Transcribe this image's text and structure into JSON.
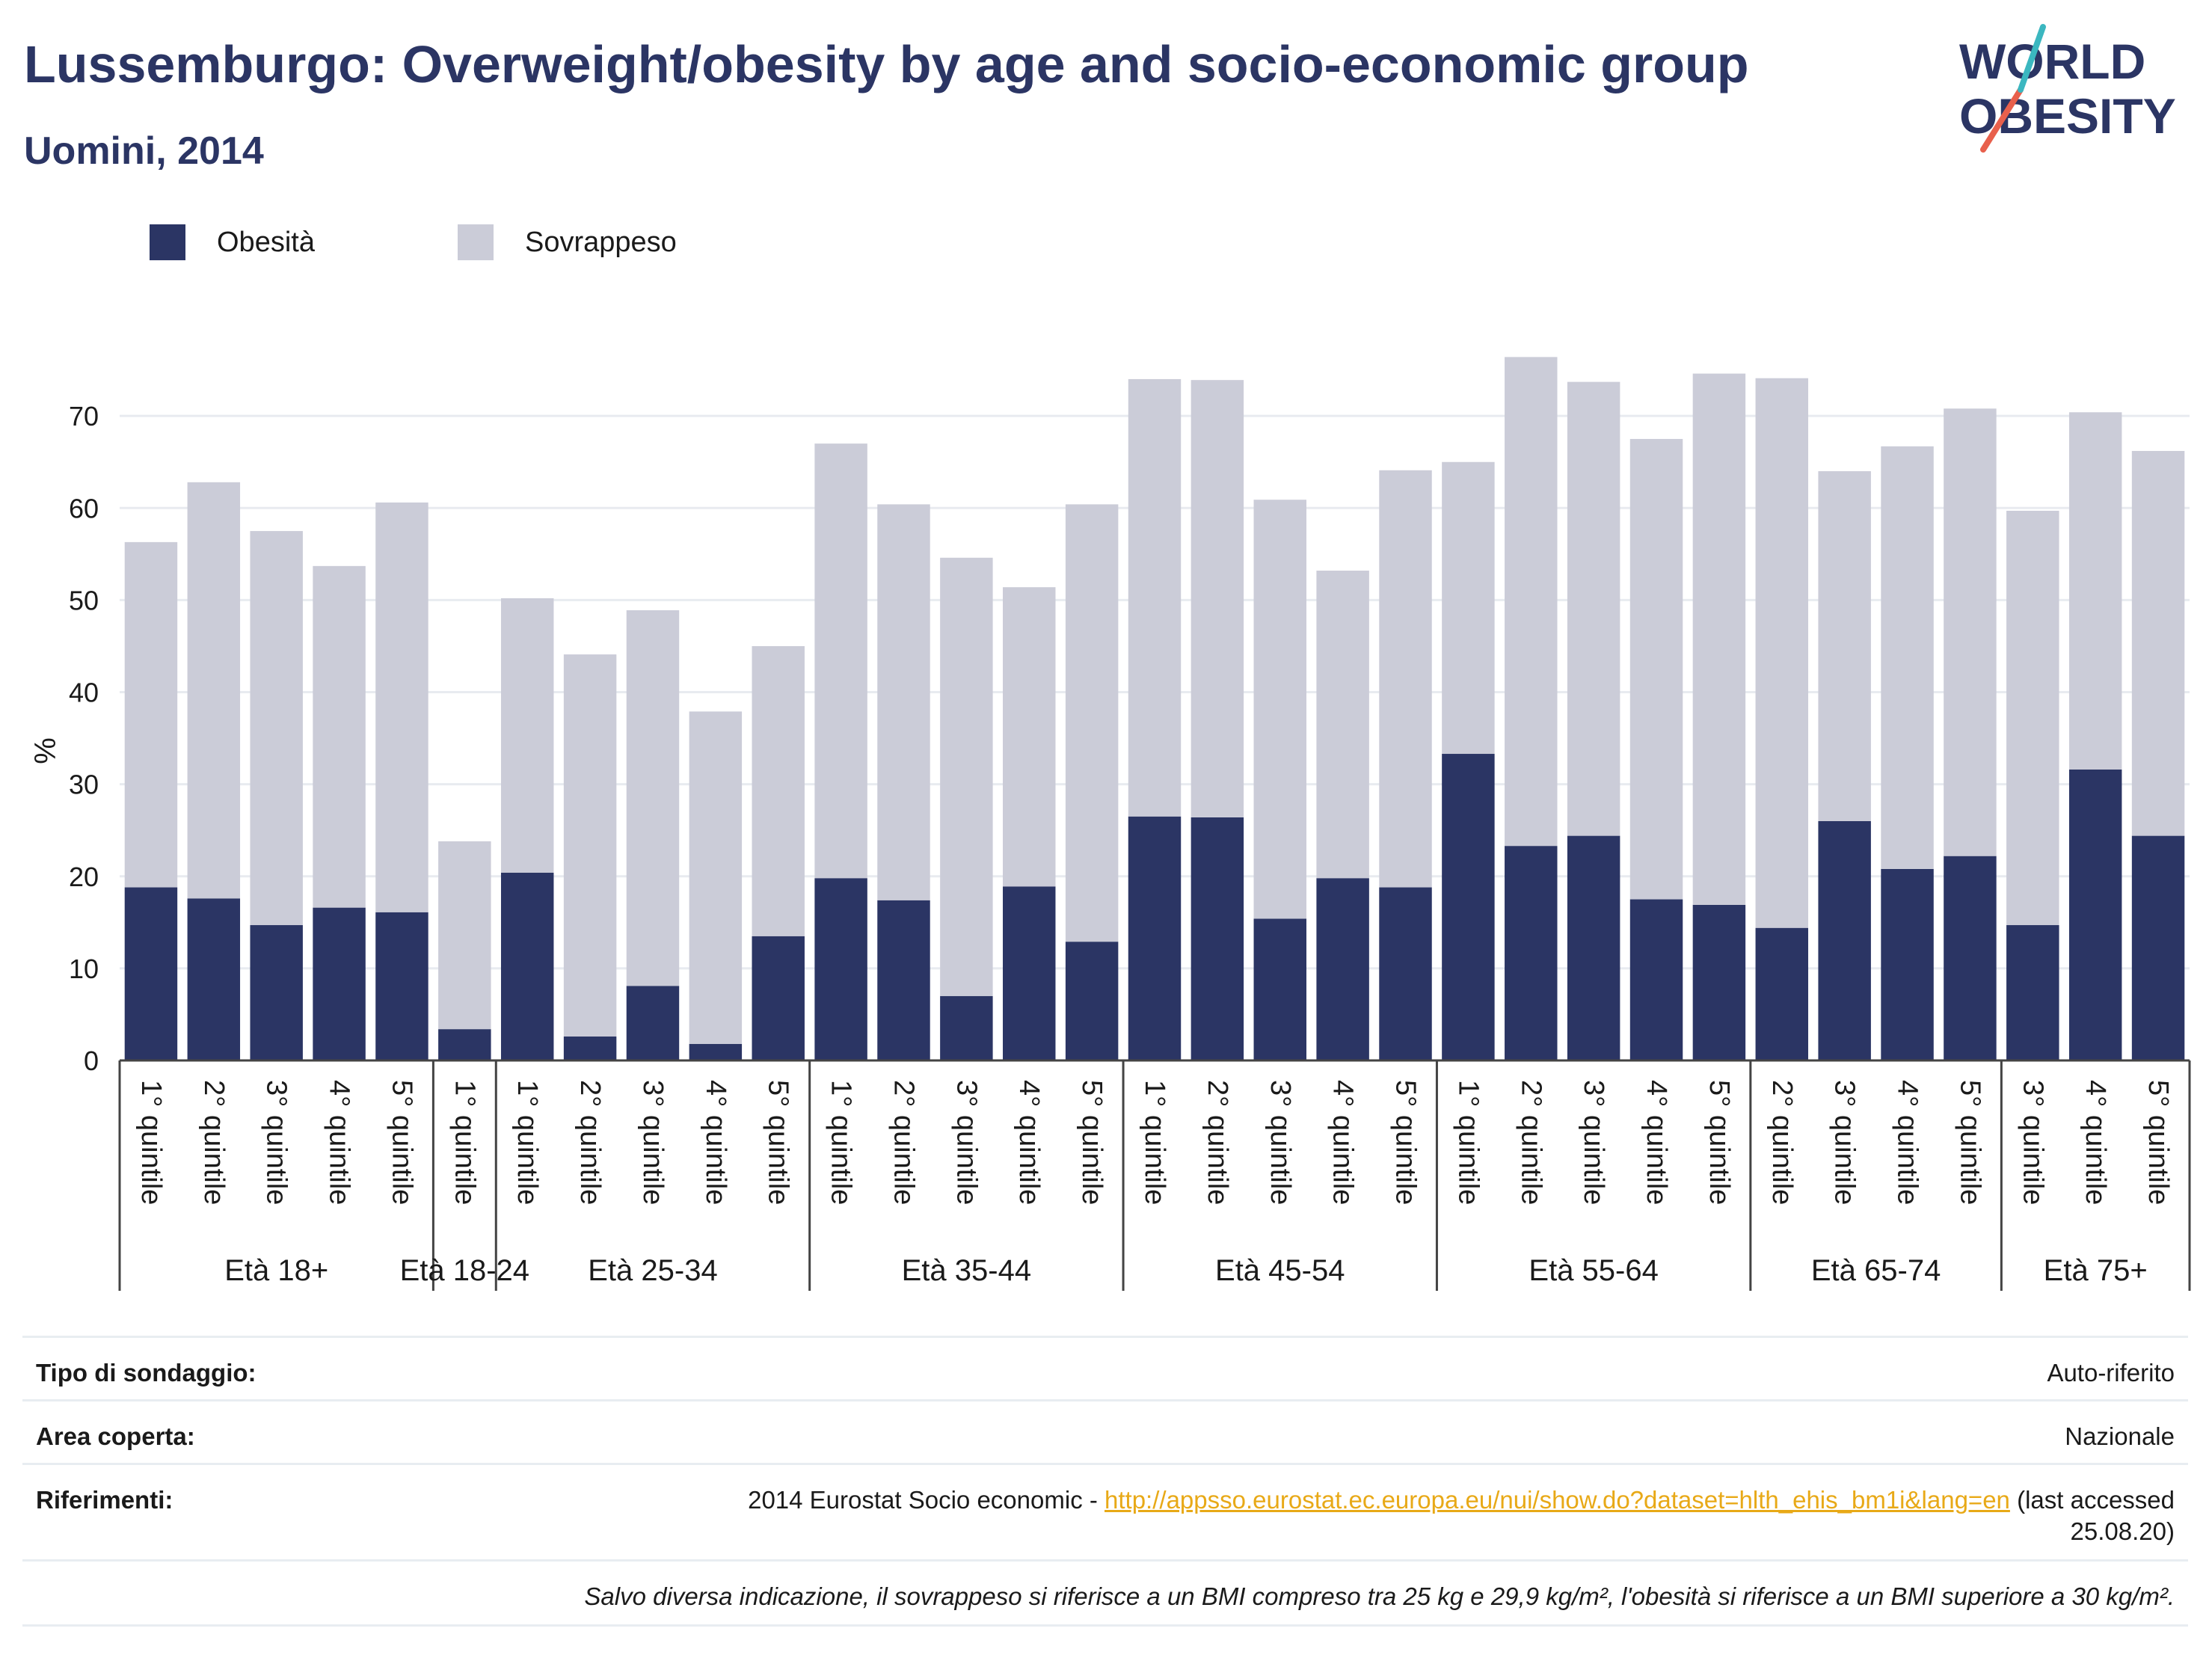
{
  "header": {
    "title": "Lussemburgo: Overweight/obesity by age and socio-economic group",
    "subtitle": "Uomini, 2014"
  },
  "logo": {
    "line1": "WORLD",
    "line2": "OBESITY"
  },
  "colors": {
    "obesity": "#2b3564",
    "overweight": "#cbccd8",
    "title": "#2b3564",
    "link": "#e8a917",
    "logo_teal": "#3bb7c0",
    "logo_red": "#e8604c"
  },
  "legend": {
    "obesity_label": "Obesità",
    "overweight_label": "Sovrappeso"
  },
  "chart_data": {
    "type": "bar",
    "stacked": true,
    "ylabel": "%",
    "ylim": [
      0,
      77
    ],
    "yticks": [
      0,
      10,
      20,
      30,
      40,
      50,
      60,
      70
    ],
    "grid": true,
    "legend_position": "top-left",
    "categories": [
      "1° quintile",
      "2° quintile",
      "3° quintile",
      "4° quintile",
      "5° quintile",
      "1° quintile",
      "1° quintile",
      "2° quintile",
      "3° quintile",
      "4° quintile",
      "5° quintile",
      "1° quintile",
      "2° quintile",
      "3° quintile",
      "4° quintile",
      "5° quintile",
      "1° quintile",
      "2° quintile",
      "3° quintile",
      "4° quintile",
      "5° quintile",
      "1° quintile",
      "2° quintile",
      "3° quintile",
      "4° quintile",
      "5° quintile",
      "2° quintile",
      "3° quintile",
      "4° quintile",
      "5° quintile",
      "3° quintile",
      "4° quintile",
      "5° quintile"
    ],
    "groups": [
      {
        "label": "Età 18+",
        "count": 5
      },
      {
        "label": "Età 18-24",
        "count": 1
      },
      {
        "label": "Età 25-34",
        "count": 5
      },
      {
        "label": "Età 35-44",
        "count": 5
      },
      {
        "label": "Età 45-54",
        "count": 5
      },
      {
        "label": "Età 55-64",
        "count": 5
      },
      {
        "label": "Età 65-74",
        "count": 4
      },
      {
        "label": "Età 75+",
        "count": 3
      }
    ],
    "series": [
      {
        "name": "Obesità",
        "values": [
          18.8,
          17.6,
          14.7,
          16.6,
          16.1,
          3.4,
          20.4,
          2.6,
          8.1,
          1.8,
          13.5,
          19.8,
          17.4,
          7.0,
          18.9,
          12.9,
          26.5,
          26.4,
          15.4,
          19.8,
          18.8,
          33.3,
          23.3,
          24.4,
          17.5,
          16.9,
          14.4,
          26.0,
          20.8,
          22.2,
          14.7,
          31.6,
          24.4
        ]
      },
      {
        "name": "Sovrappeso",
        "values": [
          37.5,
          45.2,
          42.8,
          37.1,
          44.5,
          20.4,
          29.8,
          41.5,
          40.8,
          36.1,
          31.5,
          47.2,
          43.0,
          47.6,
          32.5,
          47.5,
          47.5,
          47.5,
          45.5,
          33.4,
          45.3,
          31.7,
          53.1,
          49.3,
          50.0,
          57.7,
          59.7,
          38.0,
          45.9,
          48.6,
          45.0,
          38.8,
          41.8
        ]
      }
    ]
  },
  "info": {
    "survey_type_label": "Tipo di sondaggio:",
    "survey_type_value": "Auto-riferito",
    "area_label": "Area coperta:",
    "area_value": "Nazionale",
    "refs_label": "Riferimenti:",
    "refs_prefix": "2014 Eurostat Socio economic - ",
    "refs_link": "http://appsso.eurostat.ec.europa.eu/nui/show.do?dataset=hlth_ehis_bm1i&lang=en",
    "refs_suffix": " (last accessed",
    "refs_date": "25.08.20)",
    "note": "Salvo diversa indicazione, il sovrappeso si riferisce a un BMI compreso tra 25 kg e 29,9 kg/m², l'obesità si riferisce a un BMI superiore a 30 kg/m²."
  }
}
